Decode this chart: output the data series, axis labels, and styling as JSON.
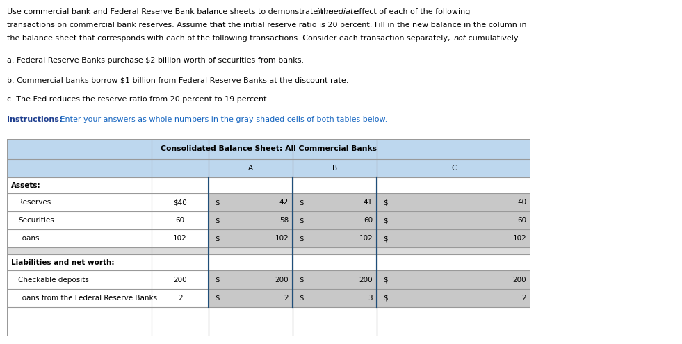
{
  "para_a": "a. Federal Reserve Banks purchase $2 billion worth of securities from banks.",
  "para_b": "b. Commercial banks borrow $1 billion from Federal Reserve Banks at the discount rate.",
  "para_c": "c. The Fed reduces the reserve ratio from 20 percent to 19 percent.",
  "instructions_bold": "Instructions:",
  "instructions_rest": " Enter your answers as whole numbers in the gray-shaded cells of both tables below.",
  "table_title": "Consolidated Balance Sheet: All Commercial Banks",
  "section_assets": "Assets:",
  "section_liabilities": "Liabilities and net worth:",
  "rows": [
    {
      "label": "Reserves",
      "base": "$40",
      "val_a": "42",
      "val_b": "41",
      "val_c": "40"
    },
    {
      "label": "Securities",
      "base": "60",
      "val_a": "58",
      "val_b": "60",
      "val_c": "60"
    },
    {
      "label": "Loans",
      "base": "102",
      "val_a": "102",
      "val_b": "102",
      "val_c": "102"
    },
    {
      "label": "Checkable deposits",
      "base": "200",
      "val_a": "200",
      "val_b": "200",
      "val_c": "200"
    },
    {
      "label": "Loans from the Federal Reserve Banks",
      "base": "2",
      "val_a": "2",
      "val_b": "3",
      "val_c": "2"
    }
  ],
  "light_blue": "#BDD7EE",
  "gray_cell": "#C8C8C8",
  "gap_gray": "#DCDCDC",
  "white": "#FFFFFF",
  "border_dark": "#1F4E79",
  "border_light": "#999999",
  "text_black": "#000000",
  "instr_blue_bold": "#1F3F8F",
  "instr_blue": "#1565C0",
  "fig_width": 9.81,
  "fig_height": 4.95,
  "fig_dpi": 100
}
